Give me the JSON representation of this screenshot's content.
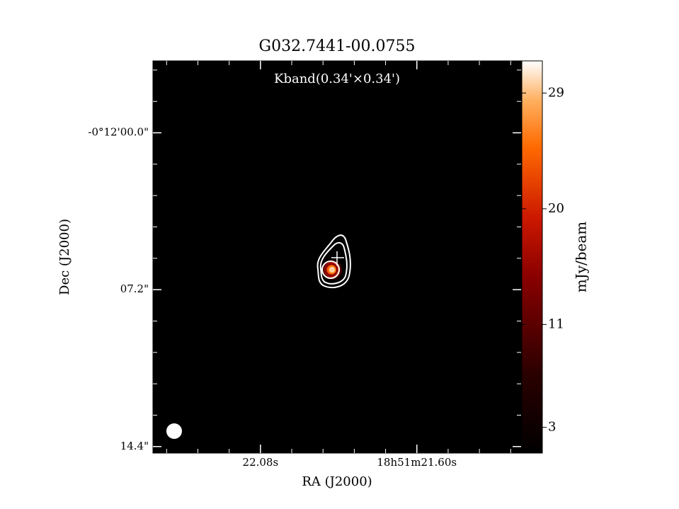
{
  "chart_data": {
    "type": "image",
    "title": "G032.7441-00.0755",
    "annotation": "Kband(0.34'×0.34')",
    "xlabel": "RA (J2000)",
    "ylabel": "Dec (J2000)",
    "xlim": [
      22.41,
      21.28
    ],
    "xticks": [
      {
        "value": 22.08,
        "label": "22.08s"
      },
      {
        "value": 21.6,
        "label": "18h51m21.60s"
      }
    ],
    "ylim": [
      14.7,
      -3.3
    ],
    "yticks": [
      {
        "value": 0,
        "label": "-0°12'00.0\""
      },
      {
        "value": 7.2,
        "label": "07.2\""
      },
      {
        "value": 14.4,
        "label": "14.4\""
      }
    ],
    "colorbar": {
      "label": "mJy/beam",
      "lim": [
        1.0,
        31.5
      ],
      "ticks": [
        3,
        11,
        20,
        29
      ]
    }
  }
}
